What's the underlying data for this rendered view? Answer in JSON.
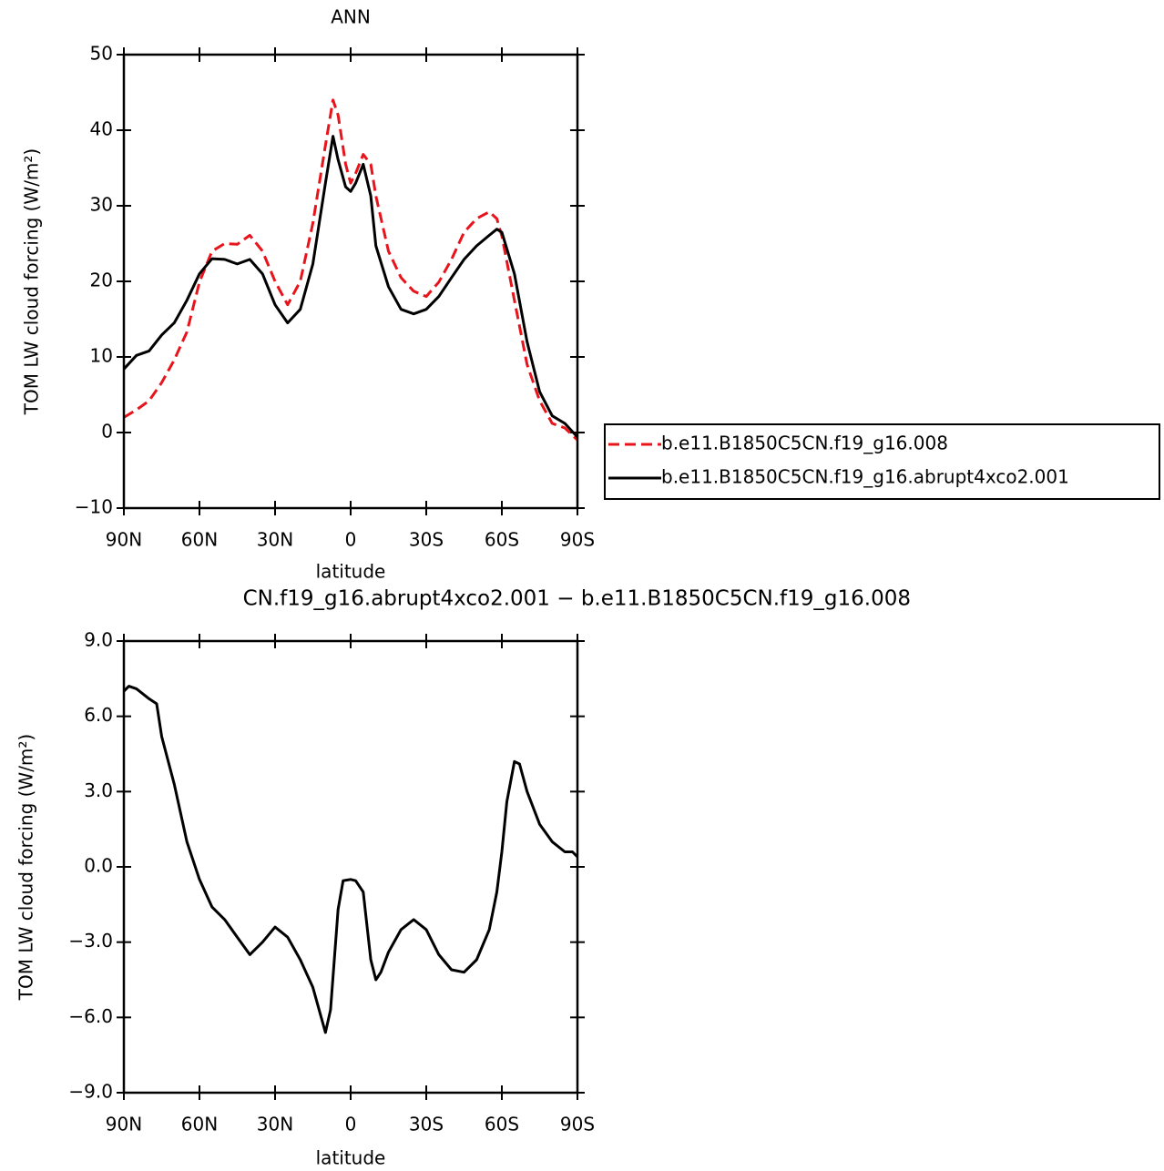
{
  "chart_data": [
    {
      "type": "line",
      "title": "ANN",
      "xlabel": "latitude",
      "ylabel": "TOM LW cloud forcing (W/m²)",
      "x": [
        90,
        85,
        80,
        75,
        70,
        65,
        60,
        55,
        50,
        45,
        40,
        35,
        30,
        25,
        20,
        15,
        10,
        7,
        5,
        2,
        0,
        -2,
        -5,
        -8,
        -10,
        -15,
        -20,
        -25,
        -30,
        -35,
        -40,
        -45,
        -50,
        -55,
        -58,
        -60,
        -65,
        -70,
        -75,
        -80,
        -85,
        -90
      ],
      "series": [
        {
          "name": "b.e11.B1850C5CN.f19_g16.008",
          "color": "#e8141c",
          "linestyle": "dashed",
          "values": [
            2,
            3,
            4.2,
            6.6,
            9.6,
            13.3,
            19.9,
            24,
            25,
            24.9,
            26.1,
            24,
            20,
            16.9,
            20,
            27.7,
            38,
            44,
            42,
            35.5,
            33,
            34.3,
            36.8,
            35.5,
            31.3,
            24,
            20.5,
            18.7,
            18,
            19.9,
            22.9,
            26.5,
            28.3,
            29.2,
            28.3,
            26,
            17.5,
            9,
            4.2,
            1.2,
            0.6,
            -1
          ]
        },
        {
          "name": "b.e11.B1850C5CN.f19_g16.abrupt4xco2.001",
          "color": "#000000",
          "linestyle": "solid",
          "values": [
            8.4,
            10.2,
            10.8,
            12.9,
            14.5,
            17.5,
            21,
            23,
            22.9,
            22.3,
            22.9,
            21,
            16.9,
            14.5,
            16.3,
            22.3,
            33,
            39.2,
            36.1,
            32.5,
            31.9,
            33,
            35.5,
            31.3,
            24.7,
            19.3,
            16.3,
            15.7,
            16.3,
            18,
            20.5,
            22.9,
            24.7,
            26.1,
            26.9,
            26.5,
            21,
            12,
            5.4,
            2.2,
            1.2,
            -0.6
          ]
        }
      ],
      "xlim": [
        90,
        -90
      ],
      "xticks": [
        {
          "value": 90,
          "label": "90N"
        },
        {
          "value": 60,
          "label": "60N"
        },
        {
          "value": 30,
          "label": "30N"
        },
        0,
        {
          "value": -30,
          "label": "30S"
        },
        {
          "value": -60,
          "label": "60S"
        },
        {
          "value": -90,
          "label": "90S"
        }
      ],
      "ylim": [
        -10,
        50
      ],
      "yticks": [
        {
          "value": -10,
          "label": "−10"
        },
        0,
        10,
        20,
        30,
        40,
        50
      ],
      "legend": "outside-right"
    },
    {
      "type": "line",
      "title": "CN.f19_g16.abrupt4xco2.001 − b.e11.B1850C5CN.f19_g16.008",
      "xlabel": "latitude",
      "ylabel": "TOM LW cloud forcing (W/m²)",
      "x": [
        90,
        88,
        85,
        80,
        77,
        75,
        70,
        65,
        60,
        55,
        50,
        45,
        40,
        35,
        30,
        25,
        20,
        15,
        10,
        8,
        5,
        3,
        0,
        -2,
        -5,
        -8,
        -10,
        -12,
        -15,
        -20,
        -25,
        -30,
        -35,
        -40,
        -45,
        -50,
        -55,
        -58,
        -60,
        -62,
        -65,
        -67,
        -70,
        -75,
        -80,
        -85,
        -88,
        -90
      ],
      "color": "#000000",
      "values": [
        7.0,
        7.2,
        7.1,
        6.7,
        6.5,
        5.2,
        3.3,
        1.0,
        -0.5,
        -1.6,
        -2.1,
        -2.8,
        -3.5,
        -3.0,
        -2.4,
        -2.8,
        -3.7,
        -4.8,
        -6.6,
        -5.7,
        -1.7,
        -0.55,
        -0.5,
        -0.55,
        -1.0,
        -3.7,
        -4.5,
        -4.2,
        -3.4,
        -2.5,
        -2.1,
        -2.5,
        -3.5,
        -4.1,
        -4.2,
        -3.7,
        -2.5,
        -1.0,
        0.6,
        2.6,
        4.2,
        4.1,
        3.0,
        1.7,
        1.0,
        0.6,
        0.6,
        0.4
      ],
      "xlim": [
        90,
        -90
      ],
      "xticks": [
        {
          "value": 90,
          "label": "90N"
        },
        {
          "value": 60,
          "label": "60N"
        },
        {
          "value": 30,
          "label": "30N"
        },
        0,
        {
          "value": -30,
          "label": "30S"
        },
        {
          "value": -60,
          "label": "60S"
        },
        {
          "value": -90,
          "label": "90S"
        }
      ],
      "ylim": [
        -9,
        9
      ],
      "yticks": [
        {
          "value": -9,
          "label": "−9.0"
        },
        {
          "value": -6,
          "label": "−6.0"
        },
        {
          "value": -3,
          "label": "−3.0"
        },
        {
          "value": 0,
          "label": "0.0"
        },
        {
          "value": 3,
          "label": "3.0"
        },
        {
          "value": 6,
          "label": "6.0"
        },
        {
          "value": 9,
          "label": "9.0"
        }
      ]
    }
  ]
}
